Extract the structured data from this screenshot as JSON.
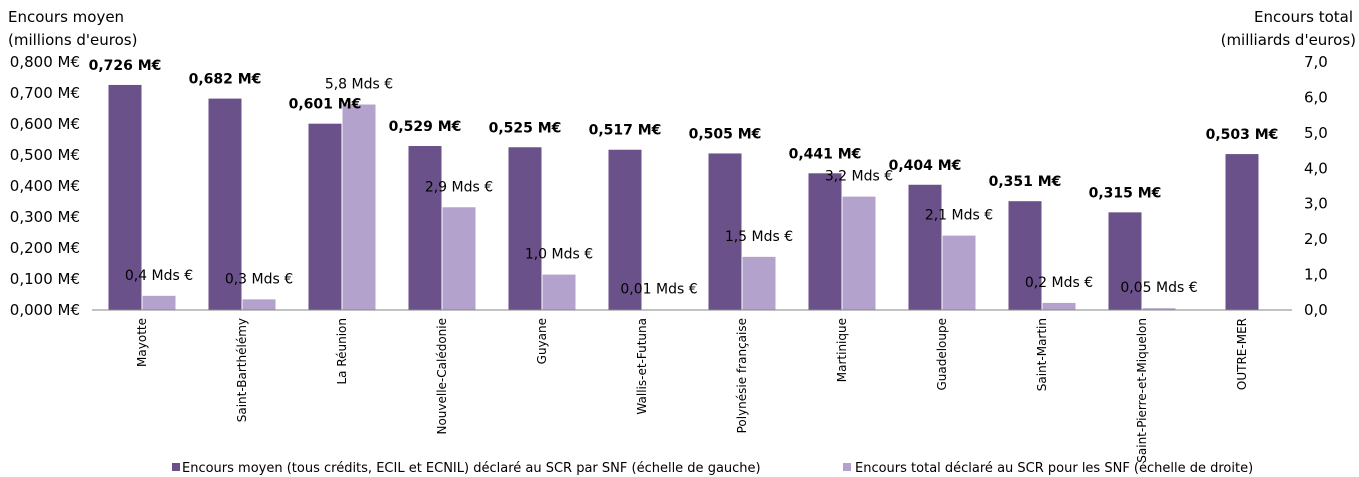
{
  "chart_data": {
    "type": "bar",
    "categories": [
      "Mayotte",
      "Saint-Barthélémy",
      "La Réunion",
      "Nouvelle-Calédonie",
      "Guyane",
      "Wallis-et-Futuna",
      "Polynésie française",
      "Martinique",
      "Guadeloupe",
      "Saint-Martin",
      "Saint-Pierre-et-Miquelon",
      "OUTRE-MER"
    ],
    "y_left": {
      "title_line1": "Encours moyen",
      "title_line2": "(millions d'euros)",
      "range": [
        0,
        0.8
      ],
      "ticks": [
        "0,000 M€",
        "0,100 M€",
        "0,200 M€",
        "0,300 M€",
        "0,400 M€",
        "0,500 M€",
        "0,600 M€",
        "0,700 M€",
        "0,800 M€"
      ]
    },
    "y_right": {
      "title_line1": "Encours total",
      "title_line2": "(milliards d'euros)",
      "range": [
        0,
        7
      ],
      "ticks": [
        "0,0",
        "1,0",
        "2,0",
        "3,0",
        "4,0",
        "5,0",
        "6,0",
        "7,0"
      ]
    },
    "series": [
      {
        "name": "Encours moyen (tous crédits, ECIL et ECNIL) déclaré au SCR par SNF (échelle de gauche)",
        "axis": "left",
        "color": "#6b5189",
        "values": [
          0.726,
          0.682,
          0.601,
          0.529,
          0.525,
          0.517,
          0.505,
          0.441,
          0.404,
          0.351,
          0.315,
          0.503
        ],
        "labels": [
          "0,726 M€",
          "0,682 M€",
          "0,601 M€",
          "0,529 M€",
          "0,525 M€",
          "0,517 M€",
          "0,505 M€",
          "0,441 M€",
          "0,404 M€",
          "0,351 M€",
          "0,315 M€",
          "0,503 M€"
        ]
      },
      {
        "name": "Encours total déclaré au SCR pour les SNF (échelle de droite)",
        "axis": "right",
        "color": "#b2a2cc",
        "values": [
          0.4,
          0.3,
          5.8,
          2.9,
          1.0,
          0.01,
          1.5,
          3.2,
          2.1,
          0.2,
          0.05,
          null
        ],
        "labels": [
          "0,4 Mds €",
          "0,3 Mds €",
          "5,8 Mds €",
          "2,9 Mds €",
          "1,0 Mds €",
          "0,01 Mds €",
          "1,5 Mds €",
          "3,2 Mds €",
          "2,1 Mds €",
          "0,2 Mds €",
          "0,05 Mds €",
          ""
        ]
      }
    ],
    "grid": false,
    "legend_position": "bottom"
  }
}
